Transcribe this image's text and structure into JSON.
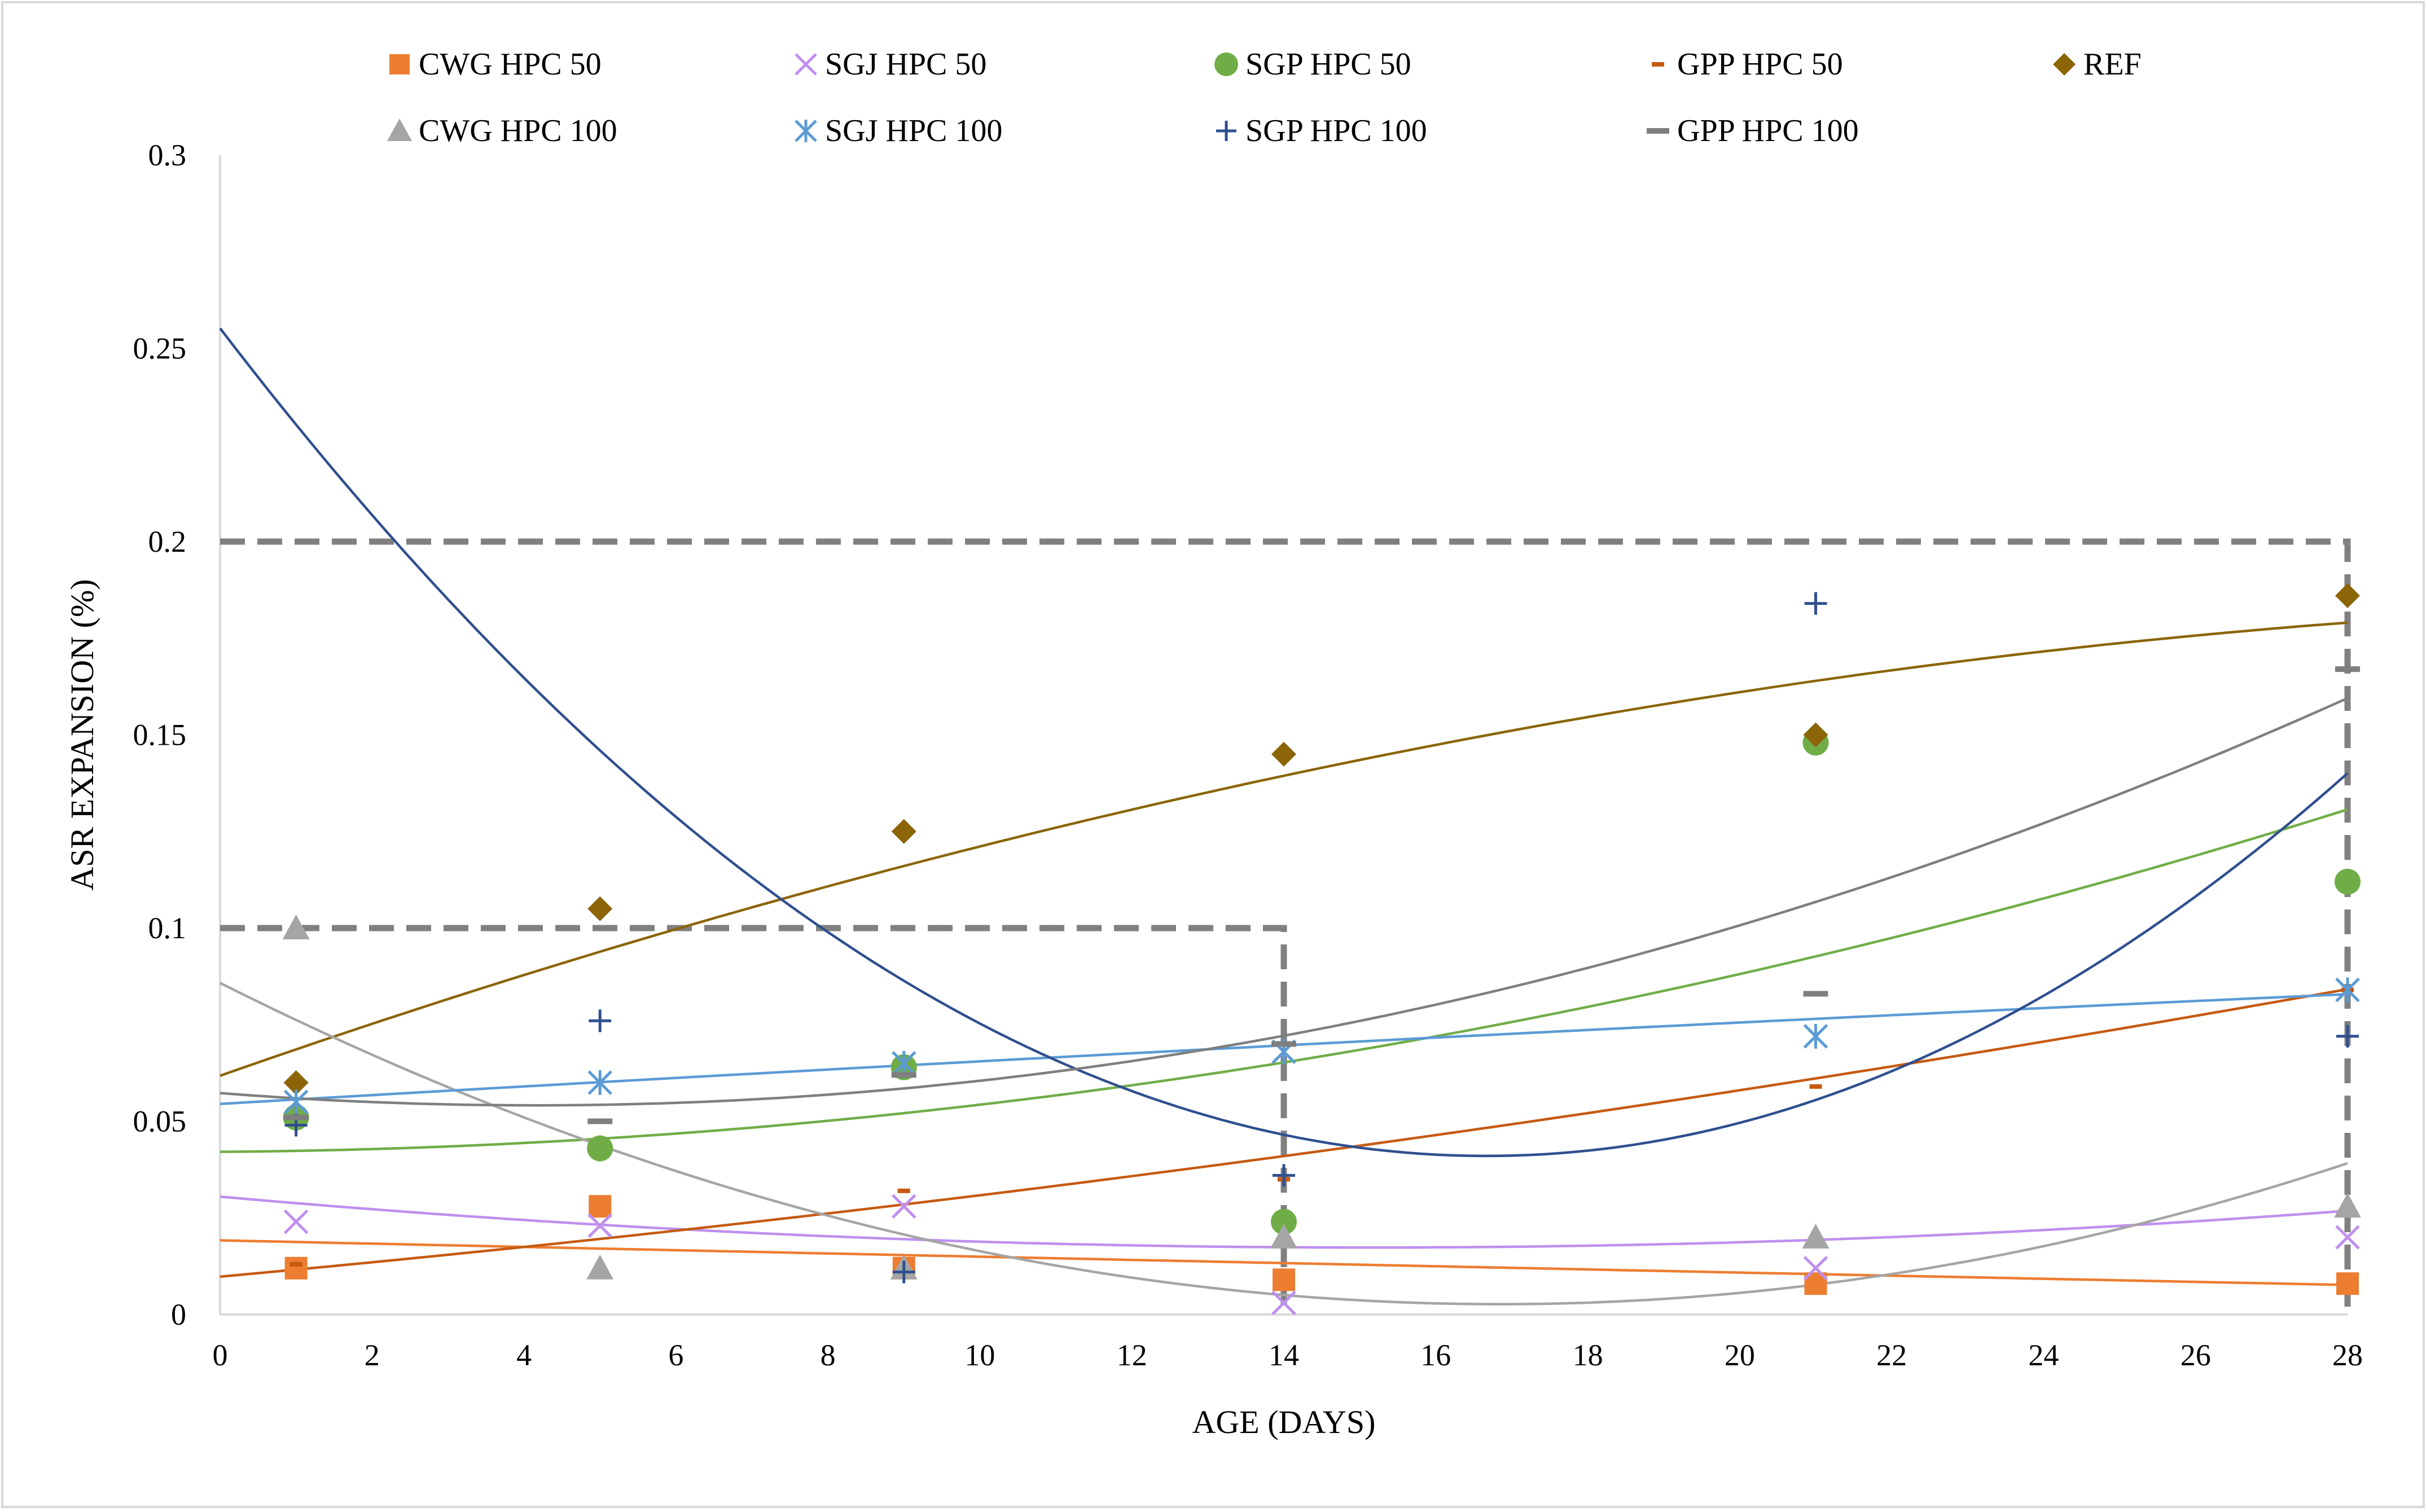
{
  "chart_data": {
    "type": "scatter",
    "title": "",
    "xlabel": "AGE (DAYS)",
    "ylabel": "ASR EXPANSION (%)",
    "xlim": [
      0,
      28
    ],
    "ylim": [
      0,
      0.3
    ],
    "x_ticks": [
      0,
      2,
      4,
      6,
      8,
      10,
      12,
      14,
      16,
      18,
      20,
      22,
      24,
      26,
      28
    ],
    "x_tick_labels": [
      "0",
      "2",
      "4",
      "6",
      "8",
      "10",
      "12",
      "14",
      "16",
      "18",
      "20",
      "22",
      "24",
      "26",
      "28"
    ],
    "y_ticks": [
      0,
      0.05,
      0.1,
      0.15,
      0.2,
      0.25,
      0.3
    ],
    "y_tick_labels": [
      "0",
      "0.05",
      "0.1",
      "0.15",
      "0.2",
      "0.25",
      "0.3"
    ],
    "grid": false,
    "legend_position": "top",
    "x": [
      1,
      5,
      9,
      14,
      21,
      28
    ],
    "series": [
      {
        "name": "CWG HPC 50",
        "marker": "square",
        "color": "#ED7D31",
        "values": [
          0.012,
          0.028,
          0.012,
          0.009,
          0.008,
          0.008
        ],
        "trend": [
          0.0192,
          -0.000429,
          6e-07
        ]
      },
      {
        "name": "SGJ HPC 50",
        "marker": "x",
        "color": "#BF8FEE",
        "values": [
          0.024,
          0.023,
          0.028,
          0.003,
          0.012,
          0.02
        ],
        "trend": [
          0.0305,
          -0.00174,
          5.75e-05
        ]
      },
      {
        "name": "SGP HPC 50",
        "marker": "circle",
        "color": "#70AD47",
        "values": [
          0.051,
          0.043,
          0.064,
          0.024,
          0.148,
          0.112
        ],
        "trend": [
          0.0421,
          0.00014,
          0.000108
        ]
      },
      {
        "name": "GPP HPC 50",
        "marker": "dash-small",
        "color": "#C55A11",
        "values": [
          0.013,
          0.012,
          0.032,
          0.035,
          0.059,
          0.084
        ],
        "trend": [
          0.0098,
          0.0018,
          3.06e-05
        ]
      },
      {
        "name": "REF",
        "marker": "diamond",
        "color": "#8B6508",
        "values": [
          0.06,
          0.105,
          0.125,
          0.145,
          0.15,
          0.186
        ],
        "trend": [
          0.0618,
          0.0069,
          -9.69e-05
        ]
      },
      {
        "name": "CWG HPC 100",
        "marker": "triangle",
        "color": "#A5A5A5",
        "values": [
          0.1,
          0.012,
          0.012,
          0.02,
          0.02,
          0.028
        ],
        "trend": [
          0.0858,
          -0.00987,
          0.000293
        ]
      },
      {
        "name": "SGJ HPC 100",
        "marker": "asterisk",
        "color": "#5B9BD5",
        "values": [
          0.055,
          0.06,
          0.065,
          0.068,
          0.072,
          0.084
        ],
        "trend": [
          0.0545,
          0.00115,
          -4.85e-06
        ]
      },
      {
        "name": "SGP HPC 100",
        "marker": "plus",
        "color": "#2F4F8F",
        "values": [
          0.049,
          0.076,
          0.011,
          0.036,
          0.184,
          0.072
        ],
        "trend": [
          0.2552,
          -0.0257,
          0.000771
        ]
      },
      {
        "name": "GPP HPC 100",
        "marker": "dash",
        "color": "#7F7F7F",
        "values": [
          0.051,
          0.05,
          0.062,
          0.07,
          0.083,
          0.167
        ],
        "trend": [
          0.0573,
          -0.00153,
          0.000185
        ]
      }
    ],
    "annotations": [
      {
        "type": "limit-box",
        "label": "0.1% limit at 14 days",
        "y": 0.1,
        "x_end": 14
      },
      {
        "type": "limit-box",
        "label": "0.2% limit at 28 days",
        "y": 0.2,
        "x_end": 28
      }
    ],
    "legend_rows": [
      [
        "CWG HPC 50",
        "SGJ HPC 50",
        "SGP HPC 50",
        "GPP HPC 50",
        "REF"
      ],
      [
        "CWG HPC 100",
        "SGJ HPC 100",
        "SGP HPC 100",
        "GPP HPC 100"
      ]
    ]
  }
}
